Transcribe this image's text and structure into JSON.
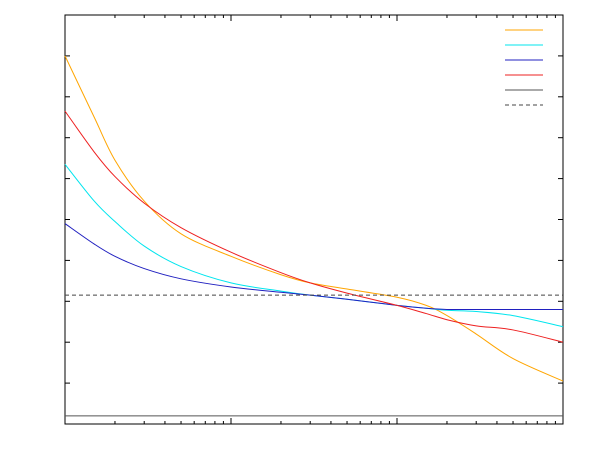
{
  "chart_data": {
    "type": "line",
    "title": "",
    "xlabel": "",
    "ylabel": "",
    "x_scale": "log",
    "xlim": [
      1,
      1000
    ],
    "ylim": [
      0,
      1
    ],
    "grid": false,
    "legend": "top-right",
    "series": [
      {
        "color": "#FFA500",
        "style": "solid",
        "points": [
          [
            1,
            0.9
          ],
          [
            1.5,
            0.75
          ],
          [
            2,
            0.645
          ],
          [
            3,
            0.545
          ],
          [
            5,
            0.465
          ],
          [
            10,
            0.41
          ],
          [
            20,
            0.365
          ],
          [
            30,
            0.345
          ],
          [
            50,
            0.33
          ],
          [
            100,
            0.31
          ],
          [
            150,
            0.29
          ],
          [
            200,
            0.265
          ],
          [
            300,
            0.22
          ],
          [
            500,
            0.16
          ],
          [
            1000,
            0.105
          ]
        ]
      },
      {
        "color": "#00E5EE",
        "style": "solid",
        "points": [
          [
            1,
            0.635
          ],
          [
            1.5,
            0.545
          ],
          [
            2,
            0.495
          ],
          [
            3,
            0.435
          ],
          [
            5,
            0.385
          ],
          [
            10,
            0.345
          ],
          [
            20,
            0.325
          ],
          [
            30,
            0.315
          ],
          [
            50,
            0.305
          ],
          [
            100,
            0.29
          ],
          [
            150,
            0.283
          ],
          [
            200,
            0.278
          ],
          [
            300,
            0.275
          ],
          [
            500,
            0.265
          ],
          [
            1000,
            0.238
          ]
        ]
      },
      {
        "color": "#2020C0",
        "style": "solid",
        "points": [
          [
            1,
            0.49
          ],
          [
            1.5,
            0.44
          ],
          [
            2,
            0.41
          ],
          [
            3,
            0.38
          ],
          [
            5,
            0.355
          ],
          [
            10,
            0.335
          ],
          [
            20,
            0.322
          ],
          [
            30,
            0.315
          ],
          [
            50,
            0.305
          ],
          [
            100,
            0.29
          ],
          [
            150,
            0.283
          ],
          [
            200,
            0.28
          ],
          [
            300,
            0.28
          ],
          [
            500,
            0.28
          ],
          [
            1000,
            0.28
          ]
        ]
      },
      {
        "color": "#EE2020",
        "style": "solid",
        "points": [
          [
            1,
            0.765
          ],
          [
            1.5,
            0.665
          ],
          [
            2,
            0.605
          ],
          [
            3,
            0.54
          ],
          [
            5,
            0.48
          ],
          [
            10,
            0.42
          ],
          [
            20,
            0.37
          ],
          [
            30,
            0.345
          ],
          [
            50,
            0.32
          ],
          [
            100,
            0.29
          ],
          [
            150,
            0.27
          ],
          [
            200,
            0.255
          ],
          [
            300,
            0.24
          ],
          [
            500,
            0.23
          ],
          [
            1000,
            0.2
          ]
        ]
      },
      {
        "color": "#555555",
        "style": "solid",
        "points": [
          [
            1,
            0.02
          ],
          [
            1000,
            0.02
          ]
        ]
      },
      {
        "color": "#444444",
        "style": "dashed",
        "points": [
          [
            1,
            0.315
          ],
          [
            1000,
            0.315
          ]
        ]
      }
    ]
  }
}
